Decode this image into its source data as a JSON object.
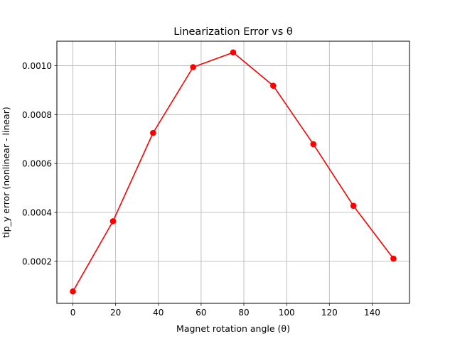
{
  "chart_data": {
    "type": "line",
    "title": "Linearization Error vs θ",
    "xlabel": "Magnet rotation angle (θ)",
    "ylabel": "tip_y error (nonlinear - linear)",
    "xlim": [
      -7.5,
      157.5
    ],
    "ylim": [
      2.83e-05,
      0.0011
    ],
    "grid": true,
    "line_color": "#ff0000",
    "x_ticks": [
      0,
      20,
      40,
      60,
      80,
      100,
      120,
      140
    ],
    "x_tick_labels": [
      "0",
      "20",
      "40",
      "60",
      "80",
      "100",
      "120",
      "140"
    ],
    "y_ticks": [
      0.0002,
      0.0004,
      0.0006,
      0.0008,
      0.001
    ],
    "y_tick_labels": [
      "0.0002",
      "0.0004",
      "0.0006",
      "0.0008",
      "0.0010"
    ],
    "x": [
      0,
      18.75,
      37.5,
      56.25,
      75,
      93.75,
      112.5,
      131.25,
      150
    ],
    "series": [
      {
        "values": [
          7.7e-05,
          0.000364,
          0.000725,
          0.000994,
          0.001054,
          0.000918,
          0.000679,
          0.000427,
          0.000211
        ]
      }
    ]
  }
}
